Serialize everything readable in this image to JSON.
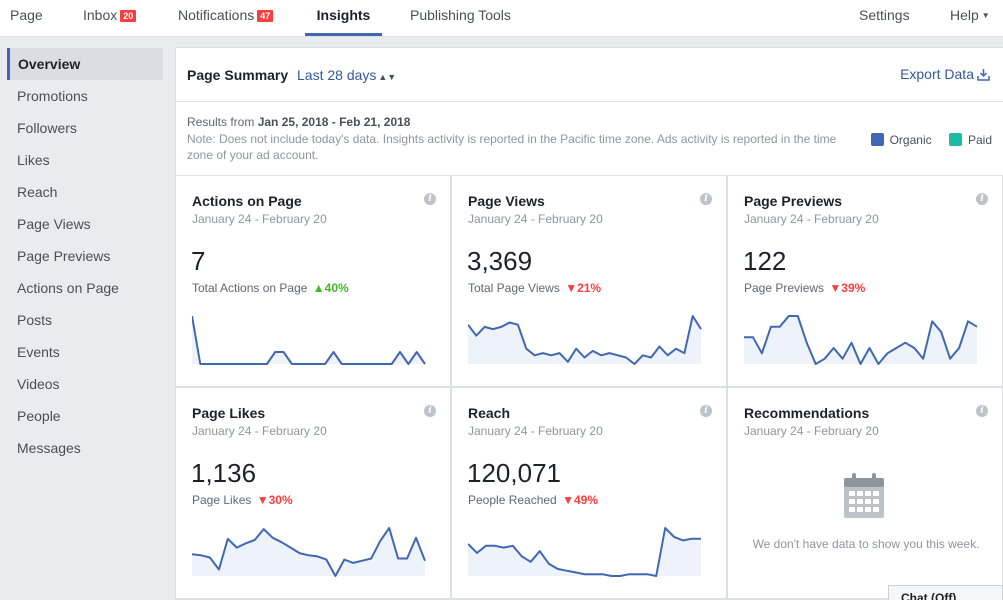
{
  "nav": {
    "page": "Page",
    "inbox": "Inbox",
    "inbox_count": "20",
    "notifications": "Notifications",
    "notifications_count": "47",
    "insights": "Insights",
    "publishing_tools": "Publishing Tools",
    "settings": "Settings",
    "help": "Help"
  },
  "sidebar": {
    "items": [
      {
        "label": "Overview"
      },
      {
        "label": "Promotions"
      },
      {
        "label": "Followers"
      },
      {
        "label": "Likes"
      },
      {
        "label": "Reach"
      },
      {
        "label": "Page Views"
      },
      {
        "label": "Page Previews"
      },
      {
        "label": "Actions on Page"
      },
      {
        "label": "Posts"
      },
      {
        "label": "Events"
      },
      {
        "label": "Videos"
      },
      {
        "label": "People"
      },
      {
        "label": "Messages"
      }
    ]
  },
  "summary": {
    "title": "Page Summary",
    "period": "Last 28 days",
    "export": "Export Data",
    "results_prefix": "Results from",
    "results_range": "Jan 25, 2018 - Feb 21, 2018",
    "note": "Note: Does not include today's data. Insights activity is reported in the Pacific time zone. Ads activity is reported in the time zone of your ad account.",
    "legend": {
      "organic": "Organic",
      "paid": "Paid",
      "organic_color": "#4267b2",
      "paid_color": "#1fbaa6"
    }
  },
  "cards": [
    {
      "title": "Actions on Page",
      "date": "January 24 - February 20",
      "value": "7",
      "label": "Total Actions on Page",
      "change": "40%",
      "direction": "up",
      "series": [
        4,
        0,
        0,
        0,
        0,
        0,
        0,
        0,
        0,
        0,
        1,
        1,
        0,
        0,
        0,
        0,
        0,
        1,
        0,
        0,
        0,
        0,
        0,
        0,
        0,
        1,
        0,
        1,
        0
      ]
    },
    {
      "title": "Page Views",
      "date": "January 24 - February 20",
      "value": "3,369",
      "label": "Total Page Views",
      "change": "21%",
      "direction": "down",
      "series": [
        195,
        170,
        190,
        185,
        190,
        200,
        195,
        140,
        125,
        130,
        125,
        130,
        110,
        140,
        120,
        135,
        125,
        130,
        125,
        120,
        105,
        125,
        120,
        145,
        125,
        140,
        130,
        215,
        185
      ]
    },
    {
      "title": "Page Previews",
      "date": "January 24 - February 20",
      "value": "122",
      "label": "Page Previews",
      "change": "39%",
      "direction": "down",
      "series": [
        5,
        5,
        2,
        7,
        7,
        9,
        9,
        4,
        0,
        1,
        3,
        1,
        4,
        0,
        3,
        0,
        2,
        3,
        4,
        3,
        1,
        8,
        6,
        1,
        3,
        8,
        7
      ]
    },
    {
      "title": "Page Likes",
      "date": "January 24 - February 20",
      "value": "1,136",
      "label": "Page Likes",
      "change": "30%",
      "direction": "down",
      "series": [
        52,
        51,
        49,
        38,
        66,
        58,
        62,
        65,
        75,
        67,
        63,
        58,
        53,
        51,
        50,
        47,
        32,
        47,
        44,
        46,
        48,
        64,
        76,
        48,
        48,
        67,
        46
      ]
    },
    {
      "title": "Reach",
      "date": "January 24 - February 20",
      "value": "120,071",
      "label": "People Reached",
      "change": "49%",
      "direction": "down",
      "series": [
        21,
        16,
        20,
        20,
        19,
        20,
        14,
        11,
        17,
        10,
        7,
        6,
        5,
        4,
        4,
        4,
        3,
        3,
        4,
        4,
        4,
        3,
        30,
        25,
        23,
        24,
        24
      ]
    },
    {
      "title": "Recommendations",
      "date": "January 24 - February 20",
      "empty_text": "We don't have data to show you this week."
    }
  ],
  "chat": "Chat (Off)"
}
